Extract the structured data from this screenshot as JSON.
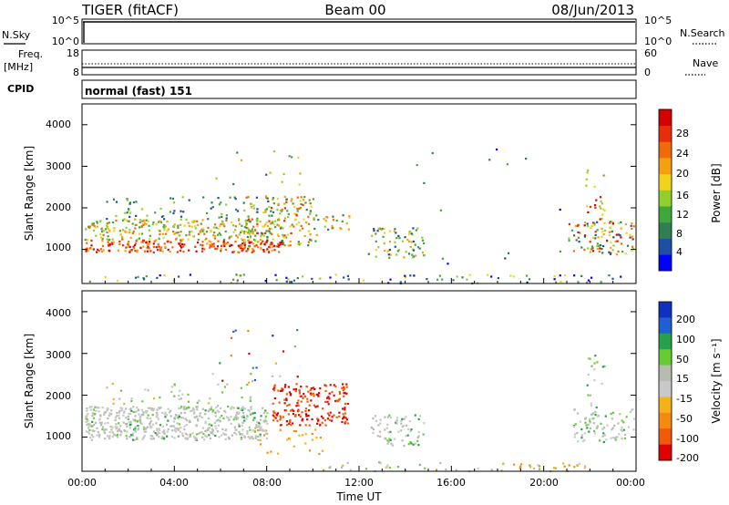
{
  "header": {
    "radar": "TIGER (fitACF)",
    "beam": "Beam 00",
    "date": "08/Jun/2013"
  },
  "noise_panel": {
    "left_label": "N.Sky",
    "right_label": "N.Search",
    "left_ticks": [
      "10^5",
      "10^0"
    ],
    "right_ticks": [
      "10^5",
      "10^0"
    ]
  },
  "freq_panel": {
    "left_label_1": "Freq.",
    "left_label_2": "[MHz]",
    "right_label": "Nave",
    "left_ticks": [
      "18",
      "8"
    ],
    "right_ticks": [
      "60",
      "0"
    ]
  },
  "cpid_panel": {
    "label": "CPID",
    "text": "normal (fast) 151"
  },
  "colors": {
    "power_scale": [
      "#0000ff",
      "#1c4fa5",
      "#2f7f52",
      "#3fa83c",
      "#8fd12c",
      "#f2d21c",
      "#f5a00f",
      "#f06a0a",
      "#e82d0a",
      "#d60000"
    ],
    "velocity_scale": [
      "#1030c0",
      "#1f5fd0",
      "#26a04a",
      "#66cc33",
      "#b6bdb0",
      "#c8c8c8",
      "#f5b01a",
      "#f58a10",
      "#f05a0a",
      "#e00000"
    ]
  },
  "chart_data": [
    {
      "type": "heatmap",
      "panel": "power",
      "xlabel": "",
      "ylabel": "Slant Range [km]",
      "x_domain_hours": [
        0,
        24
      ],
      "ylim": [
        180,
        4500
      ],
      "y_ticks": [
        "1000",
        "2000",
        "3000",
        "4000"
      ],
      "colorbar": {
        "label": "Power [dB]",
        "range": [
          0,
          32
        ],
        "ticks": [
          "4",
          "8",
          "12",
          "16",
          "20",
          "24",
          "28"
        ]
      }
    },
    {
      "type": "heatmap",
      "panel": "velocity",
      "xlabel": "Time UT",
      "ylabel": "Slant Range [km]",
      "x_ticks": [
        "00:00",
        "04:00",
        "08:00",
        "12:00",
        "16:00",
        "20:00",
        "00:00"
      ],
      "x_domain_hours": [
        0,
        24
      ],
      "ylim": [
        180,
        4500
      ],
      "y_ticks": [
        "1000",
        "2000",
        "3000",
        "4000"
      ],
      "colorbar": {
        "label": "Velocity [m s⁻¹]",
        "ticks": [
          "200",
          "100",
          "50",
          "15",
          "-15",
          "-50",
          "-100",
          "-200"
        ]
      }
    }
  ]
}
